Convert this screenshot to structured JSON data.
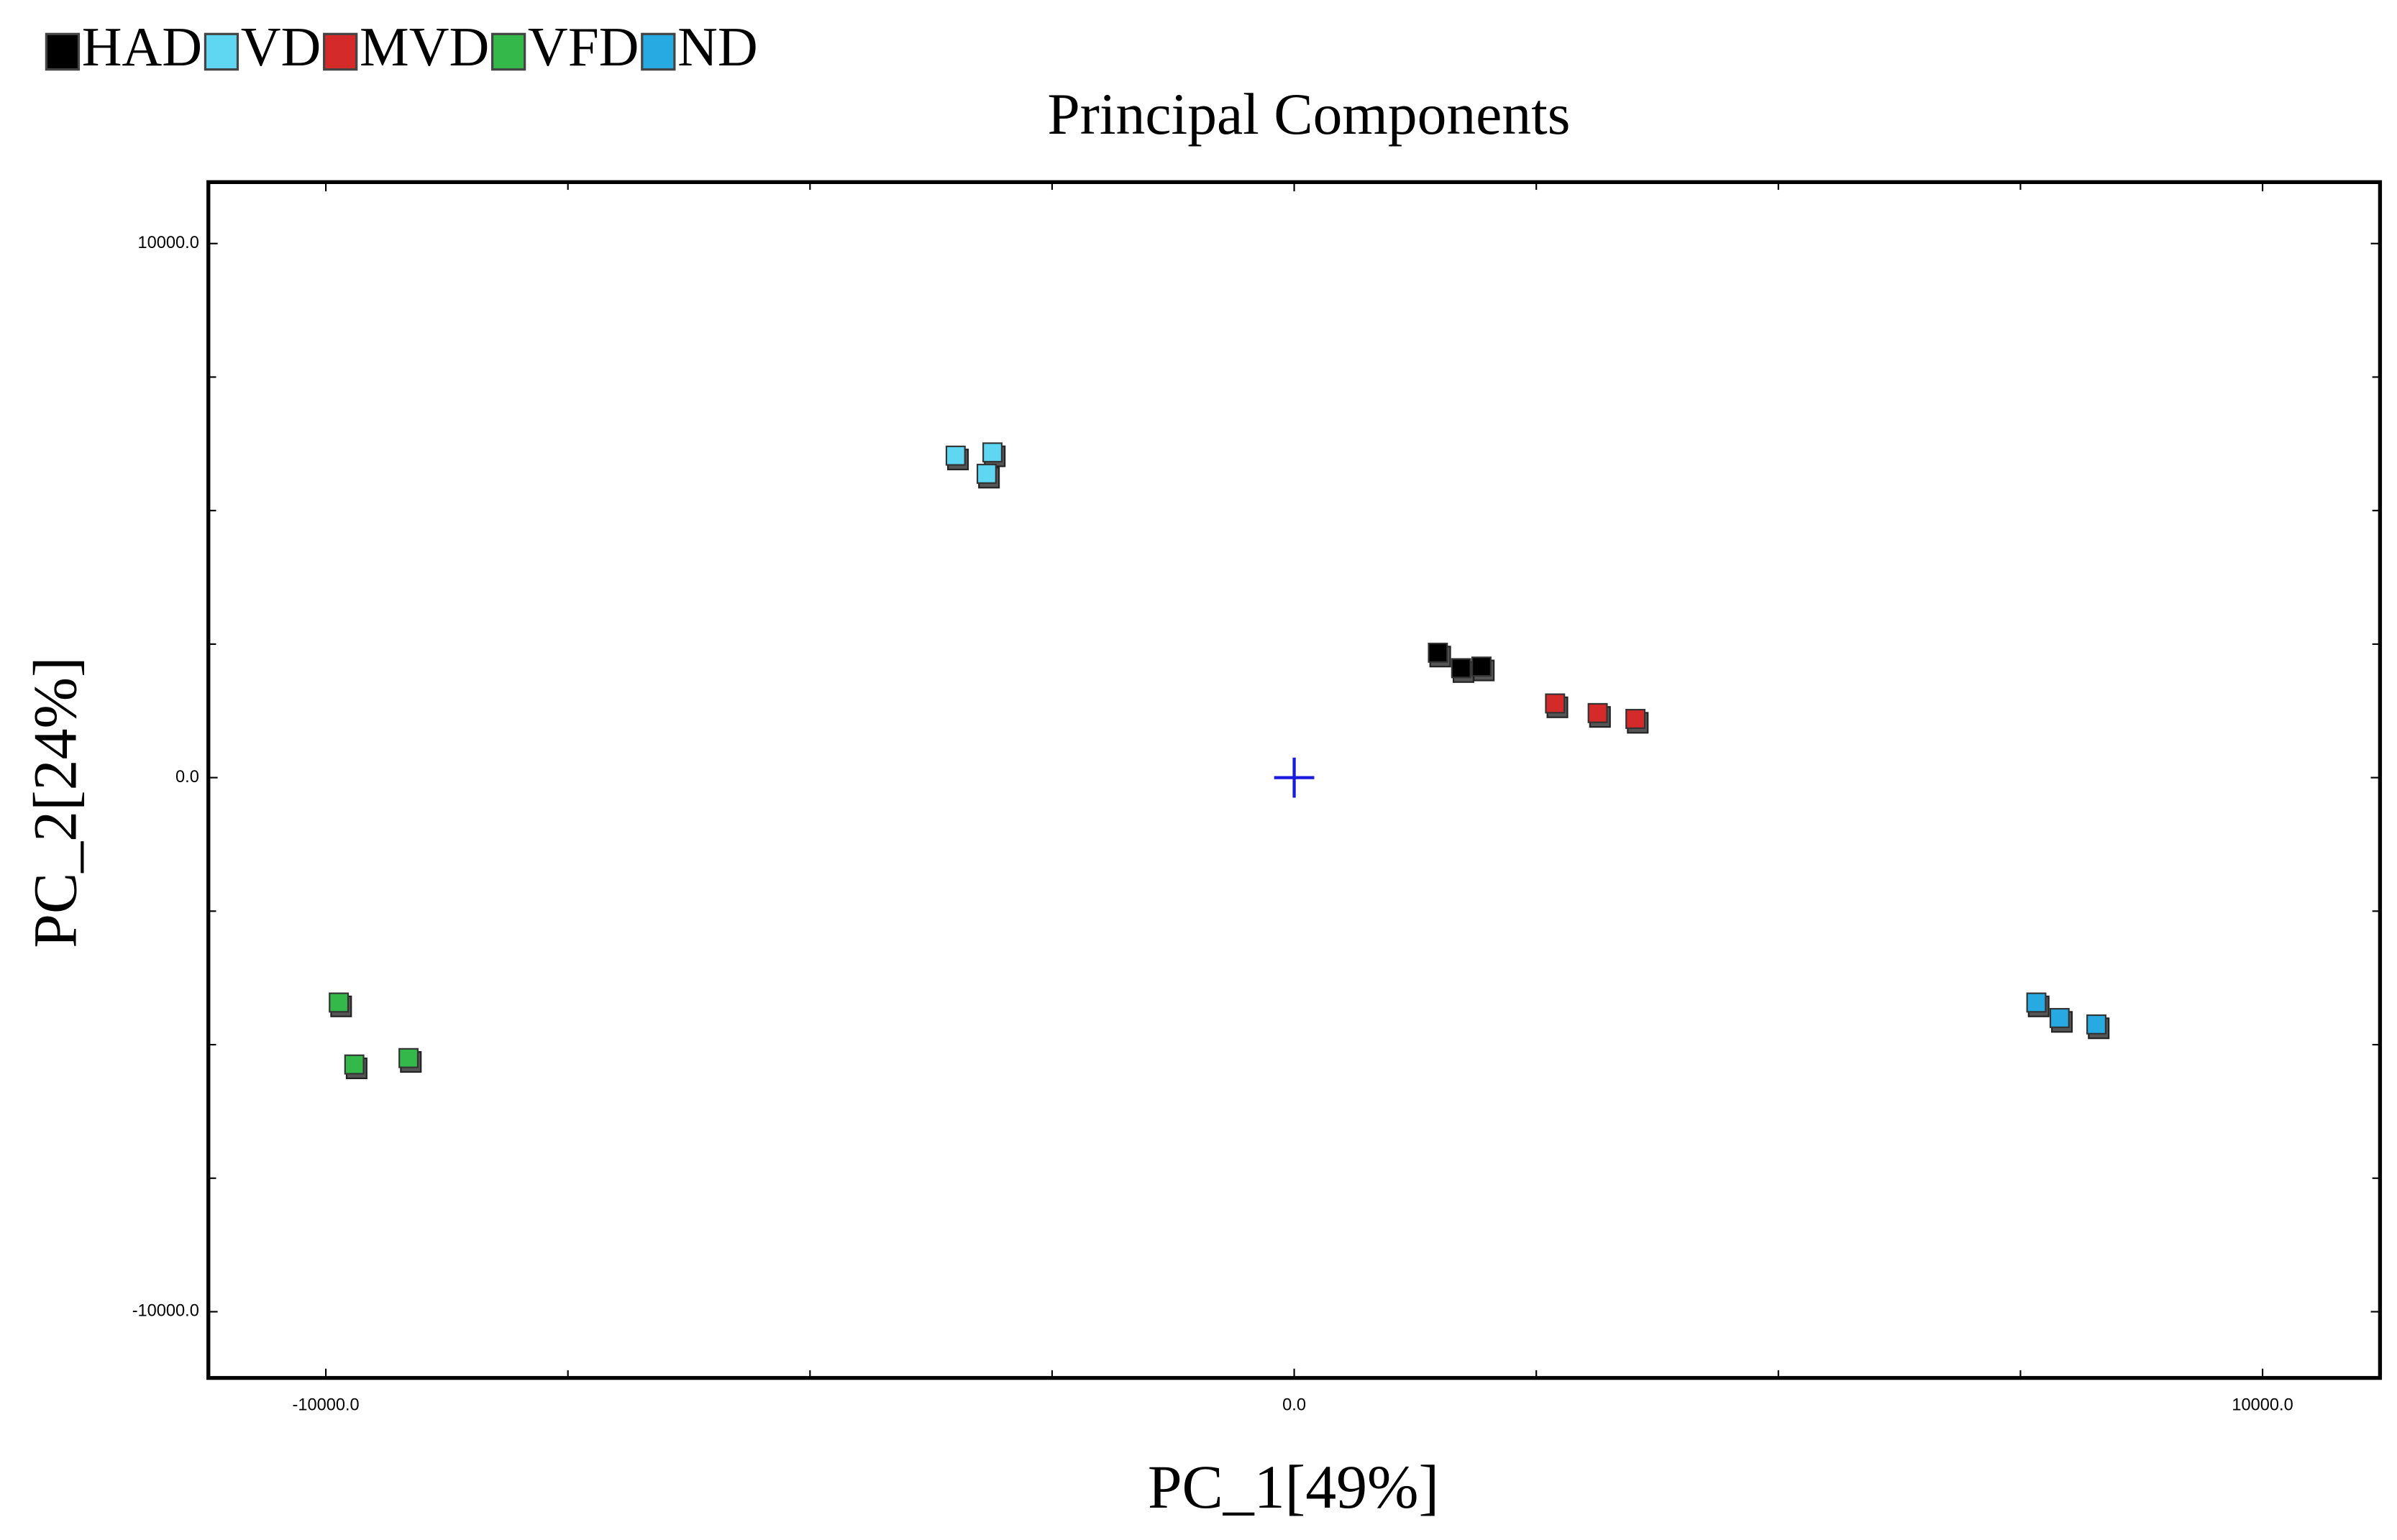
{
  "chart_data": {
    "type": "scatter",
    "title": "Principal Components",
    "x_label": "PC_1[49%]",
    "y_label": "PC_2[24%]",
    "xlim": [
      -11213,
      11213
    ],
    "ylim": [
      -11240,
      11150
    ],
    "xticks": [
      {
        "value": -10000,
        "label": "-10000.0"
      },
      {
        "value": 0,
        "label": "0.0"
      },
      {
        "value": 10000,
        "label": "10000.0"
      }
    ],
    "yticks": [
      {
        "value": -10000,
        "label": "-10000.0"
      },
      {
        "value": 0,
        "label": "0.0"
      },
      {
        "value": 10000,
        "label": "10000.0"
      }
    ],
    "xminorticks": [
      -7500,
      -5000,
      -2500,
      2500,
      5000,
      7500
    ],
    "yminorticks": [
      -7500,
      -5000,
      -2500,
      2500,
      5000,
      7500
    ],
    "legend": "top-left",
    "series": [
      {
        "name": "HAD",
        "color": "#000000",
        "x": [
          1500,
          1740,
          1950
        ],
        "values": [
          2310,
          2020,
          2050
        ]
      },
      {
        "name": "VD",
        "color": "#5fd6f2",
        "x": [
          -3480,
          -3100,
          -3160
        ],
        "values": [
          6000,
          6060,
          5660
        ]
      },
      {
        "name": "MVD",
        "color": "#d42a2a",
        "x": [
          2710,
          3150,
          3540
        ],
        "values": [
          1360,
          1180,
          1070
        ]
      },
      {
        "name": "VFD",
        "color": "#35b84a",
        "x": [
          -9850,
          -9690,
          -9130
        ],
        "values": [
          -4240,
          -5400,
          -5280
        ]
      },
      {
        "name": "ND",
        "color": "#27a9e1",
        "x": [
          7680,
          7920,
          8300
        ],
        "values": [
          -4240,
          -4530,
          -4650
        ]
      }
    ]
  }
}
